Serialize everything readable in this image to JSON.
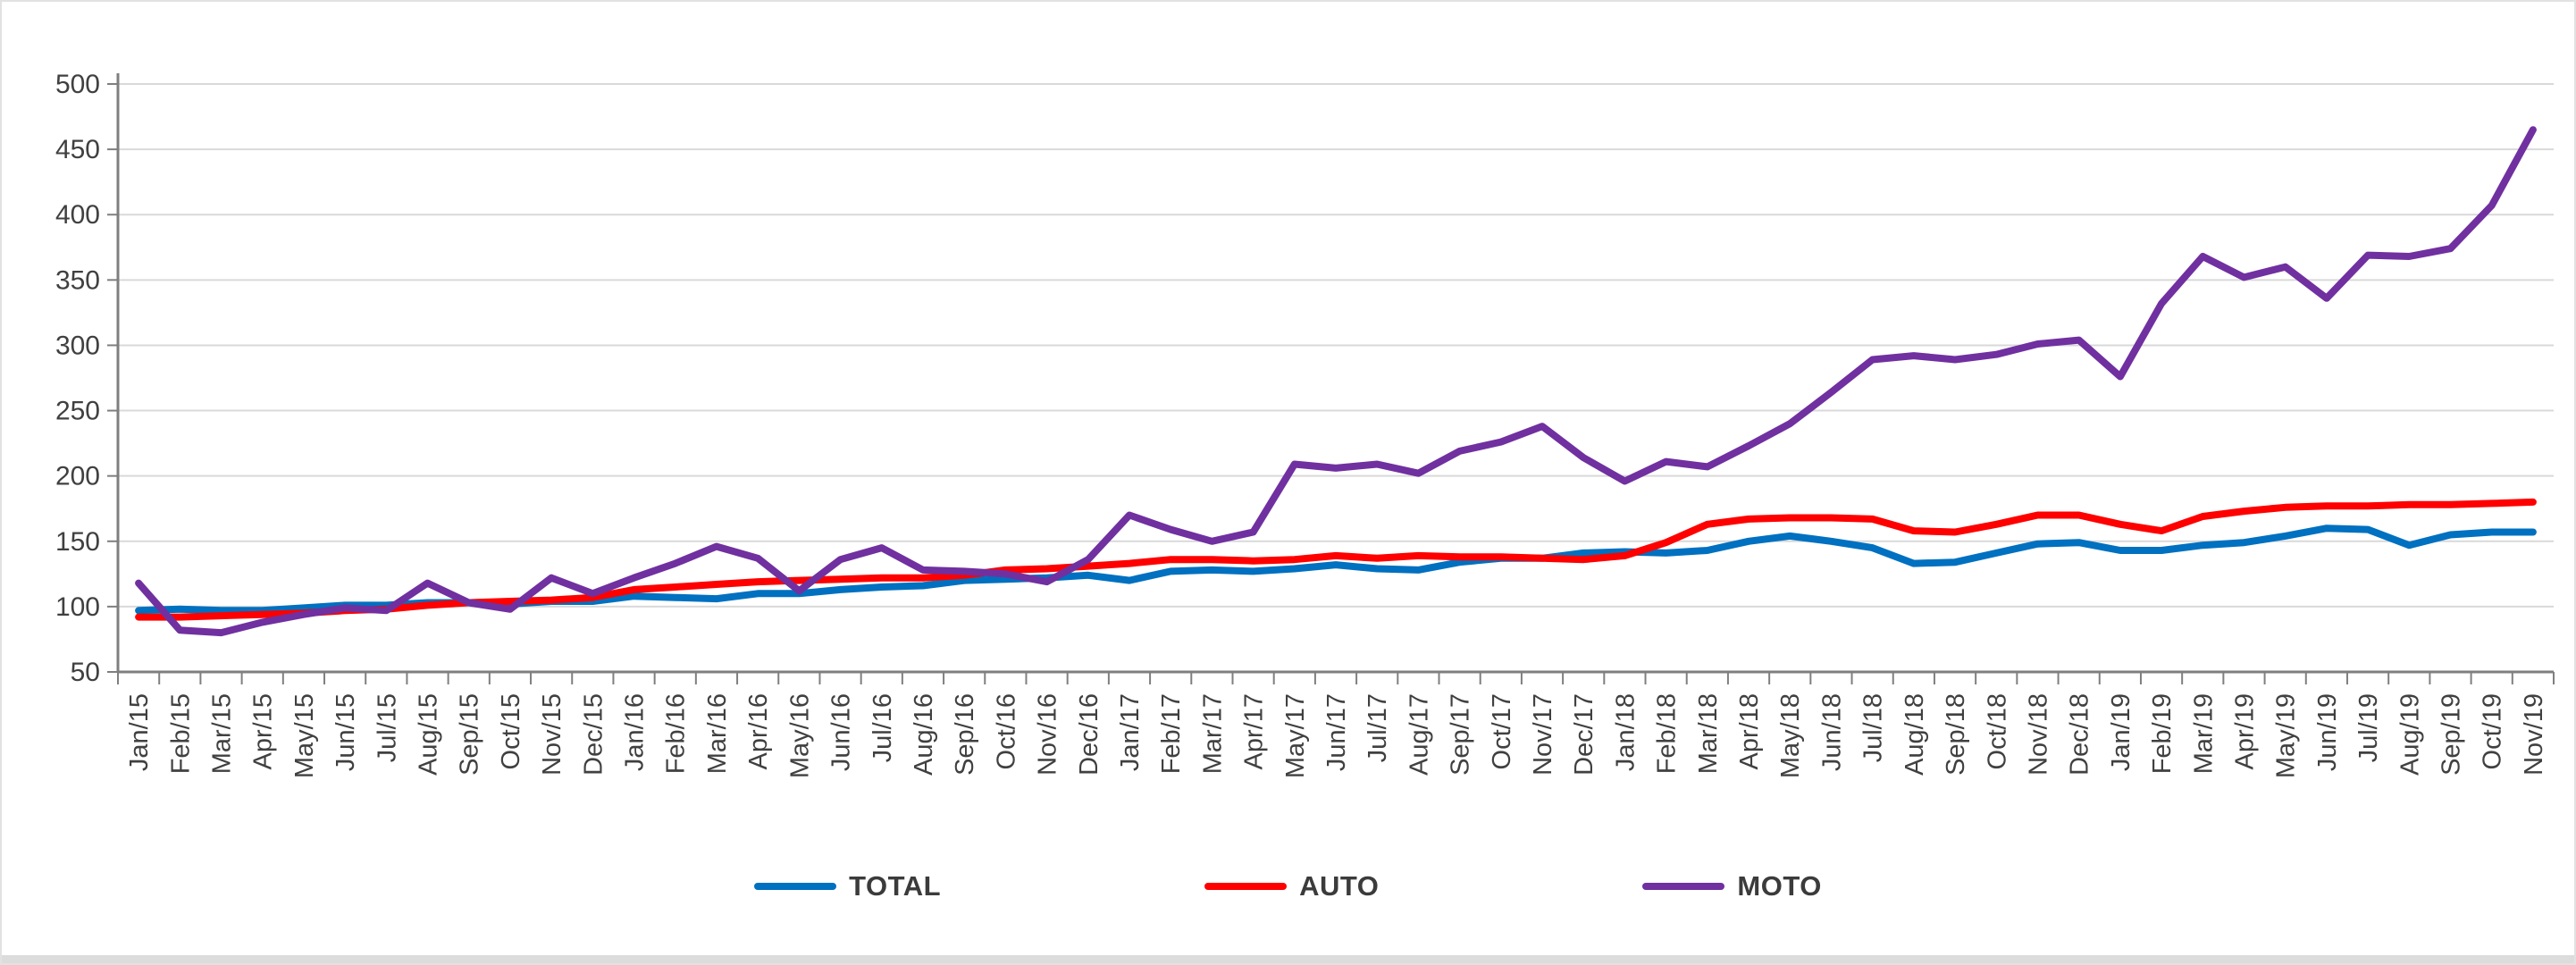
{
  "chart_data": {
    "type": "line",
    "title": "",
    "xlabel": "",
    "ylabel": "",
    "ylim": [
      50,
      500
    ],
    "yticks": [
      50,
      100,
      150,
      200,
      250,
      300,
      350,
      400,
      450,
      500
    ],
    "grid": "horizontal",
    "legend_position": "bottom-center",
    "x_labels": [
      "Jan/15",
      "Feb/15",
      "Mar/15",
      "Apr/15",
      "May/15",
      "Jun/15",
      "Jul/15",
      "Aug/15",
      "Sep/15",
      "Oct/15",
      "Nov/15",
      "Dec/15",
      "Jan/16",
      "Feb/16",
      "Mar/16",
      "Apr/16",
      "May/16",
      "Jun/16",
      "Jul/16",
      "Aug/16",
      "Sep/16",
      "Oct/16",
      "Nov/16",
      "Dec/16",
      "Jan/17",
      "Feb/17",
      "Mar/17",
      "Apr/17",
      "May/17",
      "Jun/17",
      "Jul/17",
      "Aug/17",
      "Sep/17",
      "Oct/17",
      "Nov/17",
      "Dec/17",
      "Jan/18",
      "Feb/18",
      "Mar/18",
      "Apr/18",
      "May/18",
      "Jun/18",
      "Jul/18",
      "Aug/18",
      "Sep/18",
      "Oct/18",
      "Nov/18",
      "Dec/18",
      "Jan/19",
      "Feb/19",
      "Mar/19",
      "Apr/19",
      "May/19",
      "Jun/19",
      "Jul/19",
      "Aug/19",
      "Sep/19",
      "Oct/19",
      "Nov/19"
    ],
    "series": [
      {
        "name": "TOTAL",
        "color": "#0070C0",
        "values": [
          97,
          98,
          97,
          97,
          99,
          101,
          101,
          103,
          103,
          102,
          104,
          104,
          108,
          107,
          106,
          110,
          110,
          113,
          115,
          116,
          120,
          121,
          122,
          124,
          120,
          127,
          128,
          127,
          129,
          132,
          129,
          128,
          134,
          137,
          137,
          141,
          142,
          141,
          143,
          150,
          154,
          150,
          145,
          133,
          134,
          141,
          148,
          149,
          143,
          143,
          147,
          149,
          154,
          160,
          159,
          147,
          155,
          157,
          157
        ]
      },
      {
        "name": "AUTO",
        "color": "#FF0000",
        "values": [
          92,
          92,
          93,
          94,
          95,
          97,
          98,
          101,
          103,
          104,
          105,
          107,
          113,
          115,
          117,
          119,
          120,
          121,
          122,
          122,
          124,
          128,
          129,
          131,
          133,
          136,
          136,
          135,
          136,
          139,
          137,
          139,
          138,
          138,
          137,
          136,
          139,
          149,
          163,
          167,
          168,
          168,
          167,
          158,
          157,
          163,
          170,
          170,
          163,
          158,
          169,
          173,
          176,
          177,
          177,
          178,
          178,
          179,
          180
        ]
      },
      {
        "name": "MOTO",
        "color": "#7030A0",
        "values": [
          118,
          82,
          80,
          88,
          94,
          99,
          97,
          118,
          103,
          98,
          122,
          110,
          122,
          133,
          146,
          137,
          112,
          136,
          145,
          128,
          127,
          125,
          119,
          136,
          170,
          159,
          150,
          157,
          209,
          206,
          209,
          202,
          219,
          226,
          238,
          214,
          196,
          211,
          207,
          223,
          240,
          264,
          289,
          292,
          289,
          293,
          301,
          304,
          276,
          332,
          368,
          352,
          360,
          336,
          369,
          368,
          374,
          407,
          465
        ]
      }
    ],
    "colors": {
      "gridline": "#d9d9d9",
      "axis": "#7f7f7f",
      "tick_label": "#404040",
      "legend_text": "#3b3b3b",
      "background": "#ffffff"
    }
  }
}
